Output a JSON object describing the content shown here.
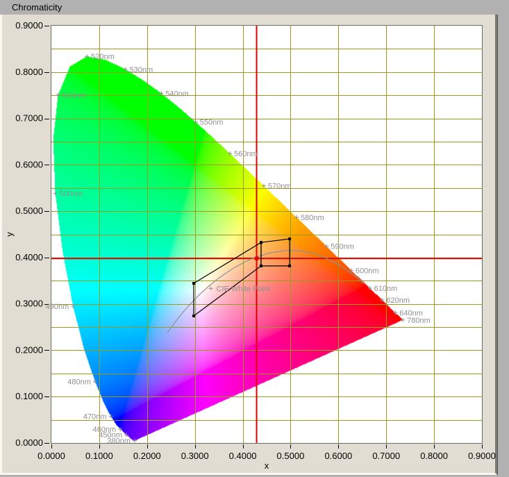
{
  "window": {
    "title": "Chromaticity"
  },
  "chart_data": {
    "type": "scatter",
    "subtype": "cie-1931-chromaticity-diagram",
    "title": "Chromaticity",
    "xlabel": "x",
    "ylabel": "y",
    "xlim": [
      0.0,
      0.9
    ],
    "ylim": [
      0.0,
      0.9
    ],
    "grid": true,
    "x_grid_step": 0.1,
    "y_grid_step": 0.05,
    "x_tick_labels": [
      "0.0000",
      "0.1000",
      "0.2000",
      "0.3000",
      "0.4000",
      "0.5000",
      "0.6000",
      "0.7000",
      "0.8000",
      "0.9000"
    ],
    "y_tick_labels": [
      "0.0000",
      "0.1000",
      "0.2000",
      "0.3000",
      "0.4000",
      "0.5000",
      "0.6000",
      "0.7000",
      "0.8000",
      "0.9000"
    ],
    "legend": "none",
    "colors": {
      "chrome_bg": "#b1b1b1",
      "panel_bg": "#e1ddd2",
      "plot_bg": "#ffffff",
      "plot_border": "#6b6b66",
      "grid": "#9a9a1e",
      "tick": "#000000",
      "crosshair": "#e10000",
      "measured_dot": "#dd0000",
      "locus_label": "#8f8f8f",
      "planckian": "#8f8f8f",
      "target_outline": "#000000"
    },
    "measured_point": {
      "x": 0.429,
      "y": 0.398
    },
    "white_point": {
      "label": "CIE White Point",
      "x": 0.3333,
      "y": 0.3333
    },
    "wavelength_labels": [
      {
        "text": "510nm",
        "x": 0.0139,
        "y": 0.7502,
        "side": "right"
      },
      {
        "text": "520nm",
        "x": 0.0743,
        "y": 0.8338,
        "side": "right"
      },
      {
        "text": "530nm",
        "x": 0.1547,
        "y": 0.8059,
        "side": "right"
      },
      {
        "text": "540nm",
        "x": 0.2296,
        "y": 0.7543,
        "side": "right"
      },
      {
        "text": "550nm",
        "x": 0.3016,
        "y": 0.6923,
        "side": "right"
      },
      {
        "text": "560nm",
        "x": 0.3731,
        "y": 0.6245,
        "side": "right"
      },
      {
        "text": "570nm",
        "x": 0.4441,
        "y": 0.5547,
        "side": "right"
      },
      {
        "text": "580nm",
        "x": 0.5125,
        "y": 0.4866,
        "side": "right"
      },
      {
        "text": "590nm",
        "x": 0.5752,
        "y": 0.4242,
        "side": "right"
      },
      {
        "text": "600nm",
        "x": 0.627,
        "y": 0.3725,
        "side": "right"
      },
      {
        "text": "610nm",
        "x": 0.6658,
        "y": 0.334,
        "side": "right"
      },
      {
        "text": "620nm",
        "x": 0.6915,
        "y": 0.3083,
        "side": "right"
      },
      {
        "text": "640nm",
        "x": 0.719,
        "y": 0.2809,
        "side": "right"
      },
      {
        "text": "780nm",
        "x": 0.7347,
        "y": 0.2653,
        "side": "right"
      },
      {
        "text": "500nm",
        "x": 0.0082,
        "y": 0.5384,
        "side": "right"
      },
      {
        "text": "490nm",
        "x": 0.0454,
        "y": 0.295,
        "side": "left"
      },
      {
        "text": "480nm",
        "x": 0.0913,
        "y": 0.1327,
        "side": "left"
      },
      {
        "text": "470nm",
        "x": 0.1241,
        "y": 0.0578,
        "side": "left"
      },
      {
        "text": "460nm",
        "x": 0.144,
        "y": 0.0297,
        "side": "left"
      },
      {
        "text": "450nm",
        "x": 0.1566,
        "y": 0.0177,
        "side": "left"
      },
      {
        "text": "380nm",
        "x": 0.1741,
        "y": 0.005,
        "side": "left"
      }
    ],
    "spectral_locus": [
      [
        380,
        0.1741,
        0.005
      ],
      [
        410,
        0.1726,
        0.0048
      ],
      [
        430,
        0.1689,
        0.0069
      ],
      [
        440,
        0.1644,
        0.0109
      ],
      [
        450,
        0.1566,
        0.0177
      ],
      [
        460,
        0.144,
        0.0297
      ],
      [
        465,
        0.1355,
        0.0399
      ],
      [
        470,
        0.1241,
        0.0578
      ],
      [
        475,
        0.1096,
        0.0868
      ],
      [
        480,
        0.0913,
        0.1327
      ],
      [
        485,
        0.0687,
        0.2007
      ],
      [
        490,
        0.0454,
        0.295
      ],
      [
        495,
        0.0235,
        0.4127
      ],
      [
        500,
        0.0082,
        0.5384
      ],
      [
        505,
        0.0039,
        0.6548
      ],
      [
        510,
        0.0139,
        0.7502
      ],
      [
        515,
        0.0389,
        0.812
      ],
      [
        520,
        0.0743,
        0.8338
      ],
      [
        525,
        0.1142,
        0.8262
      ],
      [
        530,
        0.1547,
        0.8059
      ],
      [
        535,
        0.1929,
        0.7816
      ],
      [
        540,
        0.2296,
        0.7543
      ],
      [
        545,
        0.2658,
        0.7243
      ],
      [
        550,
        0.3016,
        0.6923
      ],
      [
        555,
        0.3373,
        0.6589
      ],
      [
        560,
        0.3731,
        0.6245
      ],
      [
        565,
        0.4087,
        0.5896
      ],
      [
        570,
        0.4441,
        0.5547
      ],
      [
        575,
        0.4788,
        0.5202
      ],
      [
        580,
        0.5125,
        0.4866
      ],
      [
        585,
        0.5448,
        0.4544
      ],
      [
        590,
        0.5752,
        0.4242
      ],
      [
        595,
        0.6029,
        0.3965
      ],
      [
        600,
        0.627,
        0.3725
      ],
      [
        605,
        0.6482,
        0.3514
      ],
      [
        610,
        0.6658,
        0.334
      ],
      [
        615,
        0.6801,
        0.3197
      ],
      [
        620,
        0.6915,
        0.3083
      ],
      [
        630,
        0.7079,
        0.292
      ],
      [
        640,
        0.719,
        0.2809
      ],
      [
        650,
        0.726,
        0.274
      ],
      [
        660,
        0.73,
        0.27
      ],
      [
        680,
        0.7334,
        0.2666
      ],
      [
        700,
        0.7347,
        0.2653
      ],
      [
        780,
        0.7347,
        0.2653
      ]
    ],
    "planckian_locus": [
      [
        0.2423,
        0.2373
      ],
      [
        0.2501,
        0.2489
      ],
      [
        0.2565,
        0.2577
      ],
      [
        0.2637,
        0.2673
      ],
      [
        0.2719,
        0.2782
      ],
      [
        0.2807,
        0.2884
      ],
      [
        0.2869,
        0.2956
      ],
      [
        0.2952,
        0.3048
      ],
      [
        0.3064,
        0.3166
      ],
      [
        0.3135,
        0.3237
      ],
      [
        0.3221,
        0.3318
      ],
      [
        0.3324,
        0.341
      ],
      [
        0.3451,
        0.3516
      ],
      [
        0.3608,
        0.3635
      ],
      [
        0.3805,
        0.3768
      ],
      [
        0.4006,
        0.3885
      ],
      [
        0.4173,
        0.3965
      ],
      [
        0.4369,
        0.4041
      ],
      [
        0.4599,
        0.4106
      ],
      [
        0.4868,
        0.4148
      ],
      [
        0.5059,
        0.4152
      ],
      [
        0.5267,
        0.4133
      ],
      [
        0.5514,
        0.4082
      ],
      [
        0.5738,
        0.3993
      ],
      [
        0.5984,
        0.3859
      ],
      [
        0.6249,
        0.3676
      ],
      [
        0.6528,
        0.3444
      ]
    ],
    "target_regions": [
      {
        "name": "target-region-wide",
        "points": [
          [
            0.2976,
            0.3444
          ],
          [
            0.4384,
            0.4325
          ],
          [
            0.4384,
            0.3818
          ],
          [
            0.2976,
            0.274
          ]
        ]
      },
      {
        "name": "target-region-bin",
        "points": [
          [
            0.4384,
            0.4325
          ],
          [
            0.498,
            0.4402
          ],
          [
            0.498,
            0.3818
          ],
          [
            0.4384,
            0.3818
          ]
        ]
      }
    ]
  }
}
